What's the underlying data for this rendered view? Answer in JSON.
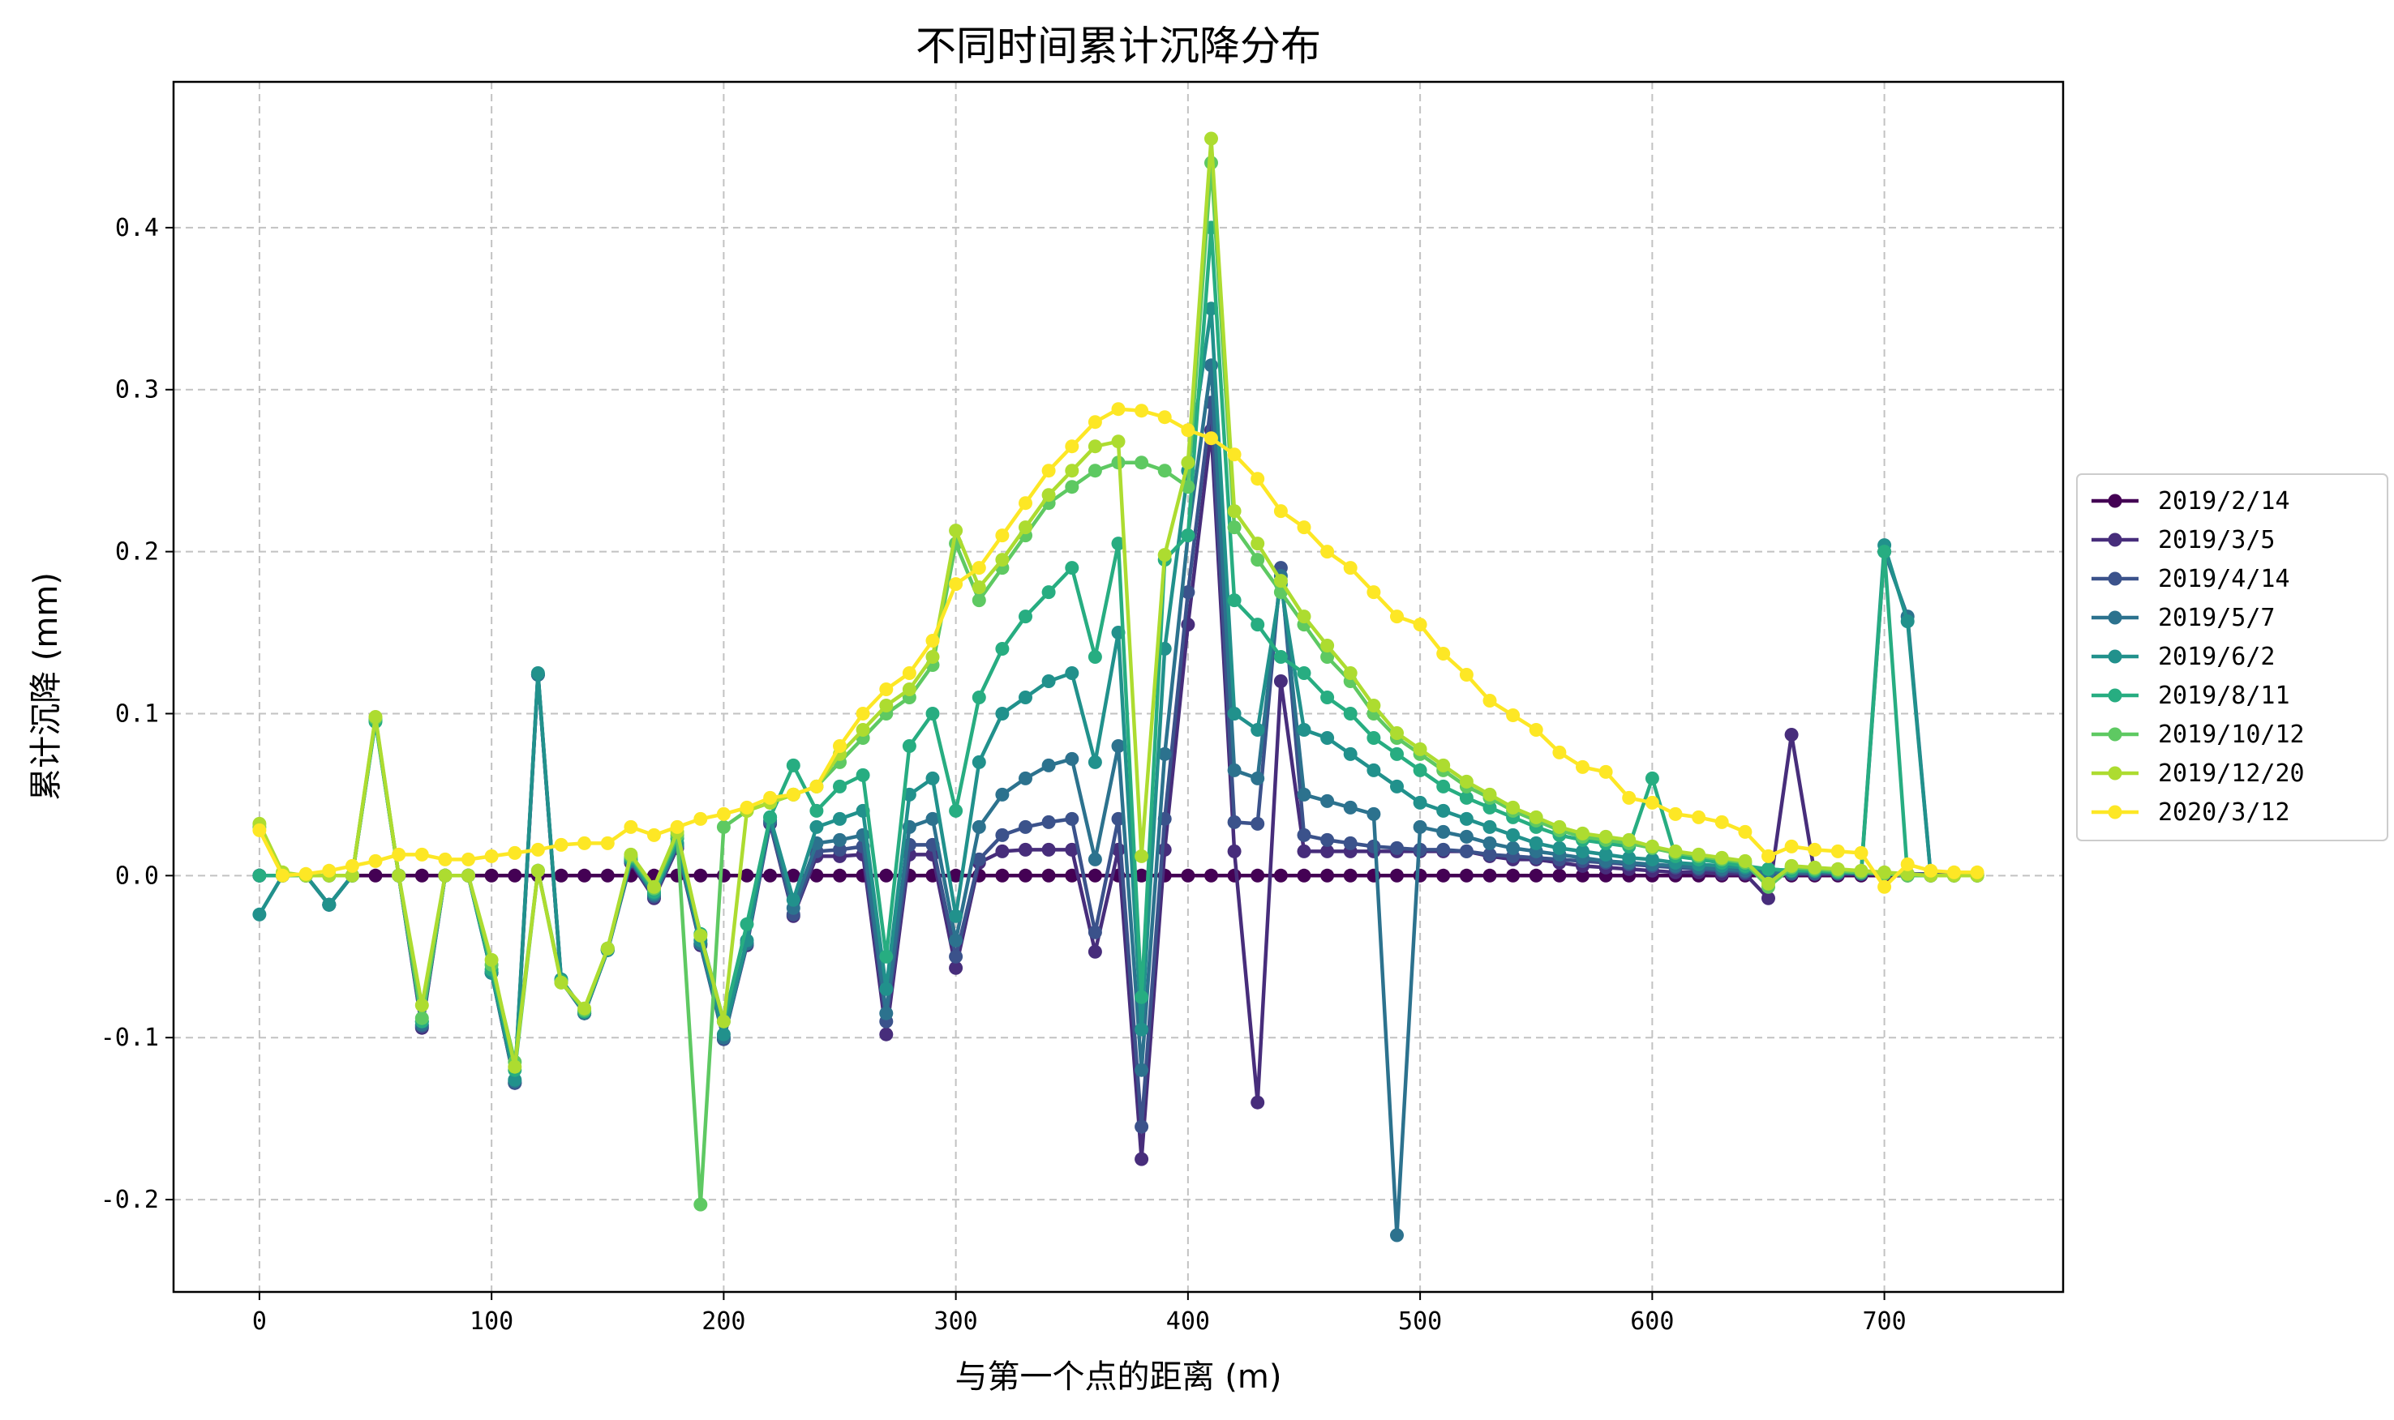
{
  "chart_data": {
    "type": "line",
    "title": "不同时间累计沉降分布",
    "xlabel": "与第一个点的距离 (m)",
    "ylabel": "累计沉降 (mm)",
    "xlim": [
      -37,
      777
    ],
    "ylim": [
      -0.257,
      0.49
    ],
    "xticks": [
      0,
      100,
      200,
      300,
      400,
      500,
      600,
      700
    ],
    "yticks": [
      -0.2,
      -0.1,
      0.0,
      0.1,
      0.2,
      0.3,
      0.4
    ],
    "ytick_labels": [
      "-0.2",
      "-0.1",
      "0.0",
      "0.1",
      "0.2",
      "0.3",
      "0.4"
    ],
    "grid": true,
    "legend_position": "right",
    "x": [
      0,
      10,
      20,
      30,
      40,
      50,
      60,
      70,
      80,
      90,
      100,
      110,
      120,
      130,
      140,
      150,
      160,
      170,
      180,
      190,
      200,
      210,
      220,
      230,
      240,
      250,
      260,
      270,
      280,
      290,
      300,
      310,
      320,
      330,
      340,
      350,
      360,
      370,
      380,
      390,
      400,
      410,
      420,
      430,
      440,
      450,
      460,
      470,
      480,
      490,
      500,
      510,
      520,
      530,
      540,
      550,
      560,
      570,
      580,
      590,
      600,
      610,
      620,
      630,
      640,
      650,
      660,
      670,
      680,
      690,
      700,
      710,
      720,
      730,
      740
    ],
    "series": [
      {
        "name": "2019/2/14",
        "color": "#440154",
        "values": [
          0,
          0,
          0,
          0,
          0,
          0,
          0,
          0,
          0,
          0,
          0,
          0,
          0,
          0,
          0,
          0,
          0,
          0,
          0,
          0,
          0,
          0,
          0,
          0,
          0,
          0,
          0,
          0,
          0,
          0,
          0,
          0,
          0,
          0,
          0,
          0,
          0,
          0,
          0,
          0,
          0,
          0,
          0,
          0,
          0,
          0,
          0,
          0,
          0,
          0,
          0,
          0,
          0,
          0,
          0,
          0,
          0,
          0,
          0,
          0,
          0,
          0,
          0,
          0,
          0,
          0,
          0,
          0,
          0,
          0,
          0,
          0,
          0,
          0,
          0
        ]
      },
      {
        "name": "2019/3/5",
        "color": "#472d7b",
        "values": [
          0,
          0,
          0,
          -0.018,
          0,
          0.096,
          0,
          -0.094,
          0,
          0,
          -0.06,
          -0.128,
          0.124,
          -0.065,
          -0.085,
          -0.046,
          0.008,
          -0.014,
          0.017,
          -0.043,
          -0.1,
          -0.043,
          0.032,
          -0.025,
          0.012,
          0.012,
          0.013,
          -0.098,
          0.013,
          0.013,
          -0.057,
          0.008,
          0.015,
          0.016,
          0.016,
          0.016,
          -0.047,
          0.016,
          -0.175,
          0.016,
          0.155,
          0.275,
          0.015,
          -0.14,
          0.12,
          0.015,
          0.015,
          0.015,
          0.015,
          0.015,
          0.015,
          0.015,
          0.015,
          0.012,
          0.01,
          0.01,
          0.008,
          0.006,
          0.005,
          0.004,
          0.003,
          0.002,
          0.002,
          0.001,
          0.001,
          -0.014,
          0.087,
          0.001,
          0.001,
          0.001,
          0.001,
          0.001,
          0.001,
          0.001,
          0.001
        ]
      },
      {
        "name": "2019/4/14",
        "color": "#3b528b",
        "values": [
          0,
          0,
          0,
          -0.018,
          0,
          0.096,
          0,
          -0.093,
          0,
          0,
          -0.06,
          -0.128,
          0.124,
          -0.065,
          -0.085,
          -0.046,
          0.009,
          -0.013,
          0.018,
          -0.042,
          -0.101,
          -0.042,
          0.033,
          -0.024,
          0.015,
          0.016,
          0.018,
          -0.09,
          0.019,
          0.019,
          -0.05,
          0.01,
          0.025,
          0.03,
          0.033,
          0.035,
          -0.035,
          0.035,
          -0.155,
          0.035,
          0.175,
          0.292,
          0.033,
          0.032,
          0.19,
          0.025,
          0.022,
          0.02,
          0.018,
          0.017,
          0.016,
          0.016,
          0.015,
          0.013,
          0.012,
          0.011,
          0.01,
          0.009,
          0.008,
          0.007,
          0.006,
          0.005,
          0.004,
          0.003,
          0.002,
          0.001,
          0.001,
          0.001,
          0.001,
          0.001,
          0.001,
          0.001,
          0.001,
          0.001,
          0.001
        ]
      },
      {
        "name": "2019/5/7",
        "color": "#2c728e",
        "values": [
          0,
          0,
          0,
          -0.018,
          0,
          0.096,
          0,
          -0.092,
          0,
          0,
          -0.06,
          -0.127,
          0.124,
          -0.065,
          -0.085,
          -0.046,
          0.009,
          -0.012,
          0.019,
          -0.042,
          -0.1,
          -0.042,
          0.034,
          -0.02,
          0.02,
          0.022,
          0.025,
          -0.085,
          0.03,
          0.035,
          -0.04,
          0.03,
          0.05,
          0.06,
          0.068,
          0.072,
          0.01,
          0.08,
          -0.12,
          0.075,
          0.21,
          0.315,
          0.065,
          0.06,
          0.185,
          0.05,
          0.046,
          0.042,
          0.038,
          -0.222,
          0.03,
          0.027,
          0.024,
          0.02,
          0.017,
          0.015,
          0.013,
          0.011,
          0.009,
          0.008,
          0.007,
          0.006,
          0.005,
          0.004,
          0.003,
          0.002,
          0.002,
          0.002,
          0.002,
          0.001,
          0.2,
          0.16,
          0,
          0,
          0
        ]
      },
      {
        "name": "2019/6/2",
        "color": "#21918c",
        "values": [
          -0.024,
          0,
          0,
          -0.018,
          0,
          0.096,
          0,
          -0.09,
          0,
          0,
          -0.06,
          -0.126,
          0.125,
          -0.064,
          -0.084,
          -0.046,
          0.01,
          -0.011,
          0.02,
          -0.04,
          -0.098,
          -0.04,
          0.036,
          -0.015,
          0.03,
          0.035,
          0.04,
          -0.07,
          0.05,
          0.06,
          -0.025,
          0.07,
          0.1,
          0.11,
          0.12,
          0.125,
          0.07,
          0.15,
          -0.095,
          0.14,
          0.25,
          0.35,
          0.1,
          0.09,
          0.18,
          0.09,
          0.085,
          0.075,
          0.065,
          0.055,
          0.045,
          0.04,
          0.035,
          0.03,
          0.025,
          0.02,
          0.017,
          0.015,
          0.013,
          0.011,
          0.01,
          0.008,
          0.007,
          0.006,
          0.005,
          0.004,
          0.003,
          0.003,
          0.002,
          0.002,
          0.204,
          0.157,
          0,
          0,
          0
        ]
      },
      {
        "name": "2019/8/11",
        "color": "#27ad81",
        "values": [
          0,
          0,
          0,
          0,
          0,
          0.095,
          0,
          -0.09,
          0,
          0,
          -0.058,
          -0.12,
          0.003,
          -0.065,
          -0.084,
          -0.045,
          0.011,
          -0.01,
          0.023,
          -0.036,
          -0.09,
          -0.03,
          0.036,
          0.068,
          0.04,
          0.055,
          0.062,
          -0.05,
          0.08,
          0.1,
          0.04,
          0.11,
          0.14,
          0.16,
          0.175,
          0.19,
          0.135,
          0.205,
          -0.075,
          0.195,
          0.21,
          0.4,
          0.17,
          0.155,
          0.135,
          0.125,
          0.11,
          0.1,
          0.085,
          0.075,
          0.065,
          0.055,
          0.048,
          0.042,
          0.036,
          0.03,
          0.025,
          0.022,
          0.02,
          0.018,
          0.06,
          0.012,
          0.01,
          0.008,
          0.006,
          0.004,
          0.003,
          0.003,
          0.002,
          0.002,
          0.2,
          0,
          0,
          0,
          0
        ]
      },
      {
        "name": "2019/10/12",
        "color": "#5ec962",
        "values": [
          0.03,
          0,
          0,
          0,
          0,
          0.097,
          0,
          -0.088,
          0,
          0,
          -0.055,
          -0.115,
          0.003,
          -0.066,
          -0.083,
          -0.045,
          0.012,
          -0.008,
          0.025,
          -0.203,
          0.03,
          0.04,
          0.045,
          0.05,
          0.055,
          0.07,
          0.085,
          0.1,
          0.11,
          0.13,
          0.205,
          0.17,
          0.19,
          0.21,
          0.23,
          0.24,
          0.25,
          0.255,
          0.255,
          0.25,
          0.24,
          0.44,
          0.215,
          0.195,
          0.175,
          0.155,
          0.135,
          0.12,
          0.1,
          0.085,
          0.075,
          0.065,
          0.055,
          0.048,
          0.04,
          0.034,
          0.028,
          0.024,
          0.022,
          0.02,
          0.017,
          0.014,
          0.012,
          0.01,
          0.008,
          -0.007,
          0.005,
          0.004,
          0.003,
          0.002,
          0.001,
          0,
          0,
          0,
          0
        ]
      },
      {
        "name": "2019/12/20",
        "color": "#addc30",
        "values": [
          0.032,
          0.002,
          0,
          0,
          0,
          0.098,
          0,
          -0.08,
          0,
          0,
          -0.052,
          -0.118,
          0.003,
          -0.066,
          -0.082,
          -0.045,
          0.013,
          -0.007,
          0.027,
          -0.037,
          -0.09,
          0.04,
          0.045,
          0.05,
          0.055,
          0.075,
          0.09,
          0.105,
          0.115,
          0.135,
          0.213,
          0.178,
          0.195,
          0.215,
          0.235,
          0.25,
          0.265,
          0.268,
          0.012,
          0.198,
          0.255,
          0.455,
          0.225,
          0.205,
          0.182,
          0.16,
          0.142,
          0.125,
          0.105,
          0.088,
          0.078,
          0.068,
          0.058,
          0.05,
          0.042,
          0.036,
          0.03,
          0.026,
          0.024,
          0.022,
          0.018,
          0.015,
          0.013,
          0.011,
          0.009,
          -0.005,
          0.006,
          0.005,
          0.004,
          0.003,
          0.002,
          0.001,
          0,
          0,
          0
        ]
      },
      {
        "name": "2020/3/12",
        "color": "#fde725",
        "values": [
          0.028,
          0,
          0.001,
          0.003,
          0.006,
          0.009,
          0.013,
          0.013,
          0.01,
          0.01,
          0.012,
          0.014,
          0.016,
          0.019,
          0.02,
          0.02,
          0.03,
          0.025,
          0.03,
          0.035,
          0.038,
          0.042,
          0.048,
          0.05,
          0.055,
          0.08,
          0.1,
          0.115,
          0.125,
          0.145,
          0.18,
          0.19,
          0.21,
          0.23,
          0.25,
          0.265,
          0.28,
          0.288,
          0.287,
          0.283,
          0.275,
          0.27,
          0.26,
          0.245,
          0.225,
          0.215,
          0.2,
          0.19,
          0.175,
          0.16,
          0.155,
          0.137,
          0.124,
          0.108,
          0.099,
          0.09,
          0.076,
          0.067,
          0.064,
          0.048,
          0.045,
          0.038,
          0.036,
          0.033,
          0.027,
          0.012,
          0.018,
          0.016,
          0.015,
          0.014,
          -0.007,
          0.007,
          0.003,
          0.002,
          0.002
        ]
      }
    ]
  }
}
